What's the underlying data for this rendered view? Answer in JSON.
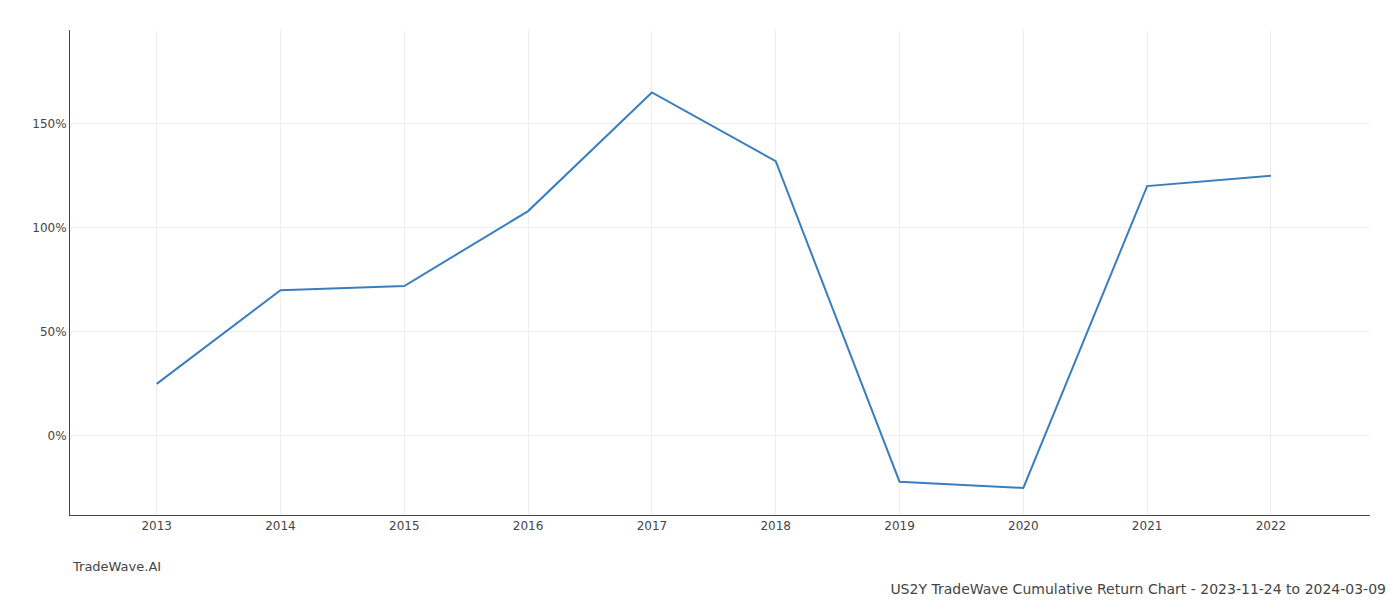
{
  "chart_data": {
    "type": "line",
    "title": "US2Y TradeWave Cumulative Return Chart - 2023-11-24 to 2024-03-09",
    "annotations": [
      "TradeWave.AI"
    ],
    "x": [
      2013,
      2014,
      2015,
      2016,
      2017,
      2018,
      2019,
      2020,
      2021,
      2022
    ],
    "values": [
      25,
      70,
      72,
      108,
      165,
      132,
      -22,
      -25,
      120,
      125
    ],
    "color": "#3a7ebf",
    "xlim": [
      2012.3,
      2022.8
    ],
    "xticks": [
      2013,
      2014,
      2015,
      2016,
      2017,
      2018,
      2019,
      2020,
      2021,
      2022
    ],
    "ylim": [
      -38,
      195
    ],
    "yticks": [
      {
        "value": 0,
        "label": "0%"
      },
      {
        "value": 50,
        "label": "50%"
      },
      {
        "value": 100,
        "label": "100%"
      },
      {
        "value": 150,
        "label": "150%"
      }
    ],
    "grid": true
  }
}
